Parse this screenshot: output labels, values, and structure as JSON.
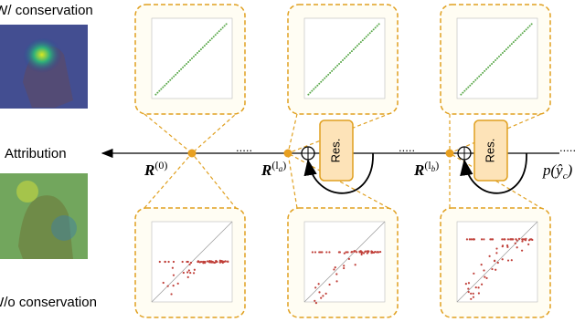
{
  "labels": {
    "top": "W/ conservation",
    "bottom": "W/o conservation",
    "attribution": "Attribution"
  },
  "stages": [
    {
      "base": "R",
      "sup": "(0)"
    },
    {
      "base": "R",
      "sup": "(l",
      "supsub": "a",
      "close": ")"
    },
    {
      "base": "R",
      "sup": "(l",
      "supsub": "b",
      "close": ")"
    }
  ],
  "residual": [
    "Res.",
    "Res."
  ],
  "ellipses": [
    ".....",
    ".....",
    "....."
  ],
  "output": {
    "base": "p(ŷ",
    "sub": "c",
    "close": ")"
  }
}
